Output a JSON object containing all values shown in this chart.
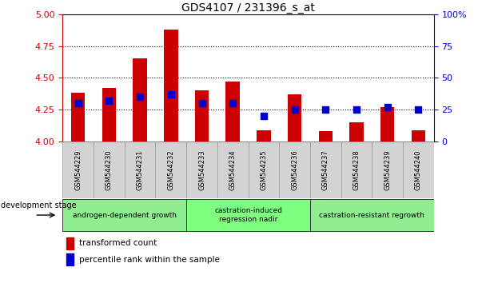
{
  "title": "GDS4107 / 231396_s_at",
  "categories": [
    "GSM544229",
    "GSM544230",
    "GSM544231",
    "GSM544232",
    "GSM544233",
    "GSM544234",
    "GSM544235",
    "GSM544236",
    "GSM544237",
    "GSM544238",
    "GSM544239",
    "GSM544240"
  ],
  "bar_values": [
    4.38,
    4.42,
    4.65,
    4.88,
    4.4,
    4.47,
    4.09,
    4.37,
    4.08,
    4.15,
    4.27,
    4.09
  ],
  "bar_bottom": 4.0,
  "percentile_values": [
    30,
    32,
    35,
    37,
    30,
    30,
    20,
    25,
    25,
    25,
    27,
    25
  ],
  "bar_color": "#cc0000",
  "dot_color": "#0000cc",
  "ylim_left": [
    4.0,
    5.0
  ],
  "ylim_right": [
    0,
    100
  ],
  "yticks_left": [
    4.0,
    4.25,
    4.5,
    4.75,
    5.0
  ],
  "yticks_right": [
    0,
    25,
    50,
    75,
    100
  ],
  "grid_lines": [
    4.25,
    4.5,
    4.75
  ],
  "groups": [
    {
      "label": "androgen-dependent growth",
      "start": 0,
      "end": 3,
      "color": "#90ee90"
    },
    {
      "label": "castration-induced\nregression nadir",
      "start": 4,
      "end": 7,
      "color": "#7fff7f"
    },
    {
      "label": "castration-resistant regrowth",
      "start": 8,
      "end": 11,
      "color": "#90ee90"
    }
  ],
  "dev_stage_label": "development stage",
  "legend_items": [
    {
      "label": "transformed count",
      "color": "#cc0000"
    },
    {
      "label": "percentile rank within the sample",
      "color": "#0000cc"
    }
  ],
  "left_axis_color": "#cc0000",
  "right_axis_color": "#0000cc",
  "bar_width": 0.45,
  "dot_marker_size": 28
}
